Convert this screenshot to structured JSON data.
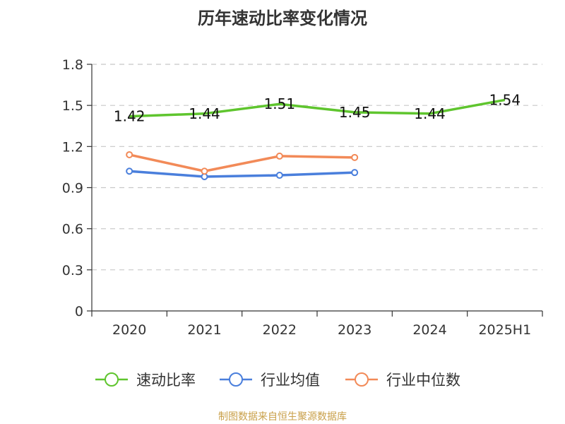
{
  "title": "历年速动比率变化情况",
  "source": "制图数据来自恒生聚源数据库",
  "chart_data": {
    "type": "line",
    "title": "历年速动比率变化情况",
    "categories": [
      "2020",
      "2021",
      "2022",
      "2023",
      "2024",
      "2025H1"
    ],
    "ylim": [
      0,
      1.8
    ],
    "yticks": [
      0,
      0.3,
      0.6,
      0.9,
      1.2,
      1.5,
      1.8
    ],
    "ytick_labels": [
      "0",
      "0.3",
      "0.6",
      "0.9",
      "1.2",
      "1.5",
      "1.8"
    ],
    "grid": true,
    "legend_position": "bottom",
    "series": [
      {
        "name": "速动比率",
        "color": "#5fc52e",
        "values": [
          1.42,
          1.44,
          1.51,
          1.45,
          1.44,
          1.54
        ],
        "labels": [
          "1.42",
          "1.44",
          "1.51",
          "1.45",
          "1.44",
          "1.54"
        ],
        "markers": false
      },
      {
        "name": "行业均值",
        "color": "#4a7fdc",
        "values": [
          1.02,
          0.98,
          0.99,
          1.01,
          null,
          null
        ],
        "markers": true
      },
      {
        "name": "行业中位数",
        "color": "#f28a58",
        "values": [
          1.14,
          1.02,
          1.13,
          1.12,
          null,
          null
        ],
        "markers": true
      }
    ]
  }
}
